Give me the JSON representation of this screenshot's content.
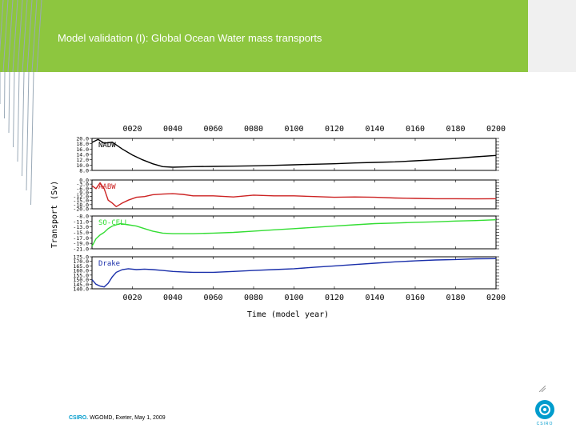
{
  "header": {
    "title": "Model validation (I): Global Ocean Water mass transports",
    "accent_color": "#8dc63f",
    "line_color": "#9aa9b7"
  },
  "footer": {
    "org": "CSIRO.",
    "text": "WGOMD, Exeter, May 1, 2009"
  },
  "logo": {
    "text": "CSIRO",
    "color": "#009ccd"
  },
  "chart_data": {
    "type": "line",
    "xlabel": "Time (model year)",
    "ylabel": "Transport (Sv)",
    "xlim": [
      0,
      200
    ],
    "top_ticks": [
      "0020",
      "0040",
      "0060",
      "0080",
      "0100",
      "0120",
      "0140",
      "0160",
      "0180",
      "0200"
    ],
    "bottom_ticks": [
      "0020",
      "0040",
      "0060",
      "0080",
      "0100",
      "0120",
      "0140",
      "0160",
      "0180",
      "0200"
    ],
    "tick_values": [
      20,
      40,
      60,
      80,
      100,
      120,
      140,
      160,
      180,
      200
    ],
    "panels": [
      {
        "name": "NADW",
        "color": "#000000",
        "ylim": [
          8.0,
          20.0
        ],
        "yticks": [
          "20.0",
          "18.0",
          "16.0",
          "14.0",
          "12.0",
          "10.0",
          "8.0"
        ],
        "x": [
          0,
          3,
          6,
          10,
          15,
          20,
          25,
          30,
          35,
          40,
          45,
          50,
          60,
          70,
          80,
          90,
          100,
          110,
          120,
          130,
          140,
          150,
          160,
          170,
          180,
          190,
          200
        ],
        "y": [
          18.5,
          19.6,
          18.2,
          18.6,
          16.0,
          13.8,
          12.0,
          10.5,
          9.4,
          9.2,
          9.3,
          9.4,
          9.5,
          9.6,
          9.7,
          9.9,
          10.1,
          10.3,
          10.5,
          10.8,
          11.0,
          11.2,
          11.6,
          12.0,
          12.5,
          13.1,
          13.6
        ]
      },
      {
        "name": "AABW",
        "color": "#cc2222",
        "ylim": [
          -20.0,
          0.0
        ],
        "yticks": [
          "0.0",
          "-3.0",
          "-6.0",
          "-9.0",
          "-12.0",
          "-15.0",
          "-18.0",
          "-20.0"
        ],
        "x": [
          0,
          2,
          4,
          6,
          8,
          10,
          12,
          15,
          18,
          22,
          26,
          30,
          35,
          40,
          45,
          50,
          60,
          70,
          80,
          90,
          100,
          110,
          120,
          130,
          140,
          150,
          160,
          170,
          180,
          190,
          200
        ],
        "y": [
          -4.0,
          -6.0,
          -2.0,
          -6.0,
          -14.0,
          -16.0,
          -18.5,
          -16.0,
          -14.0,
          -12.0,
          -11.5,
          -10.2,
          -9.8,
          -9.5,
          -10.0,
          -11.0,
          -11.0,
          -11.8,
          -10.5,
          -11.0,
          -11.0,
          -11.5,
          -12.0,
          -11.8,
          -12.0,
          -12.5,
          -12.8,
          -13.0,
          -13.0,
          -13.1,
          -13.0
        ]
      },
      {
        "name": "SO-CELL",
        "color": "#33dd33",
        "ylim": [
          -21.0,
          -8.0
        ],
        "yticks": [
          "-8.0",
          "-11.0",
          "-13.0",
          "-15.0",
          "-17.0",
          "-19.0",
          "-21.0"
        ],
        "x": [
          0,
          2,
          4,
          6,
          8,
          10,
          14,
          18,
          22,
          26,
          30,
          35,
          40,
          50,
          60,
          70,
          80,
          90,
          100,
          110,
          120,
          130,
          140,
          150,
          160,
          170,
          180,
          190,
          200
        ],
        "y": [
          -20.0,
          -17.0,
          -15.5,
          -14.5,
          -13.0,
          -12.0,
          -11.0,
          -11.5,
          -12.0,
          -13.0,
          -14.0,
          -14.8,
          -15.0,
          -15.0,
          -14.8,
          -14.5,
          -14.0,
          -13.5,
          -13.0,
          -12.5,
          -12.0,
          -11.5,
          -11.0,
          -10.8,
          -10.5,
          -10.3,
          -10.0,
          -9.8,
          -9.5
        ]
      },
      {
        "name": "Drake",
        "color": "#1a2faa",
        "ylim": [
          140.0,
          175.0
        ],
        "yticks": [
          "175.0",
          "170.0",
          "165.0",
          "160.0",
          "155.0",
          "150.0",
          "145.0",
          "140.0"
        ],
        "x": [
          0,
          2,
          4,
          6,
          8,
          10,
          12,
          15,
          18,
          22,
          26,
          30,
          35,
          40,
          45,
          50,
          60,
          70,
          80,
          90,
          100,
          110,
          120,
          130,
          140,
          150,
          160,
          170,
          180,
          190,
          200
        ],
        "y": [
          150.0,
          145.0,
          143.0,
          142.0,
          146.0,
          153.0,
          158.0,
          161.0,
          162.0,
          161.0,
          161.5,
          161.0,
          160.0,
          159.0,
          158.5,
          158.0,
          158.0,
          159.0,
          160.0,
          161.0,
          162.0,
          163.5,
          165.0,
          166.5,
          168.0,
          169.5,
          170.5,
          171.5,
          172.0,
          172.8,
          173.0
        ]
      }
    ]
  }
}
